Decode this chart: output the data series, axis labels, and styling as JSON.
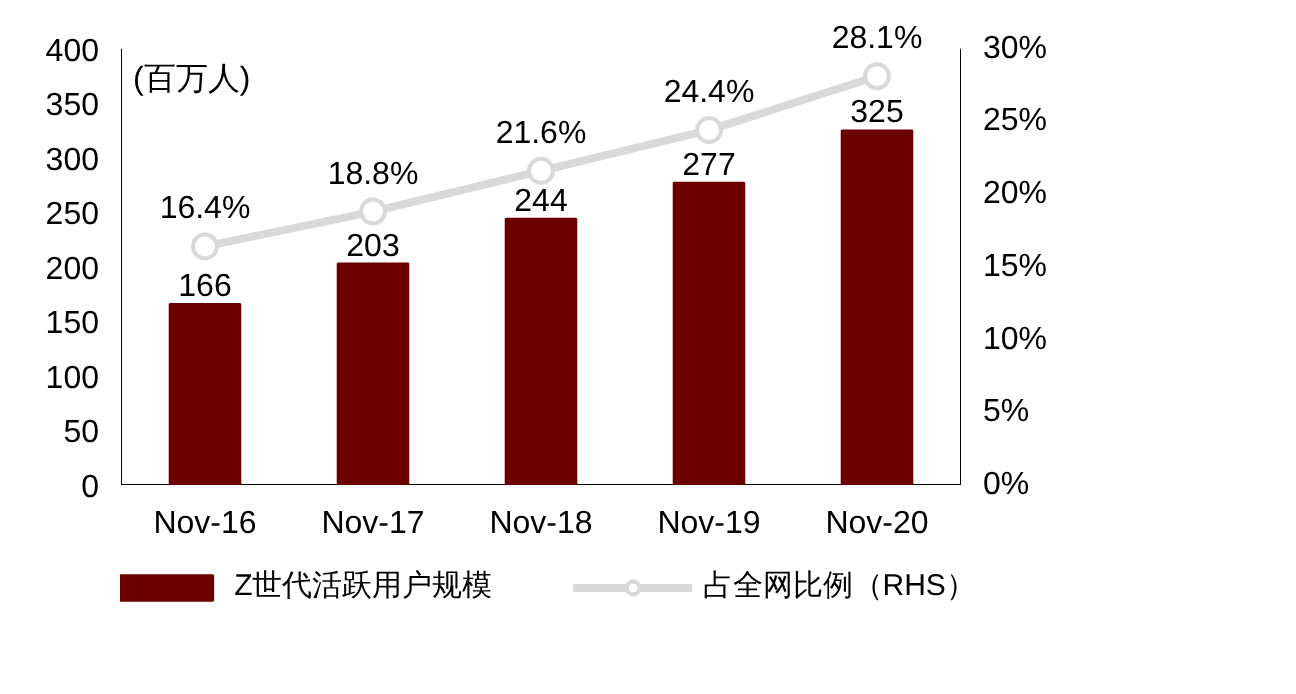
{
  "chart_data": {
    "type": "bar",
    "ylabel": "(百万人)",
    "categories": [
      "Nov-16",
      "Nov-17",
      "Nov-18",
      "Nov-19",
      "Nov-20"
    ],
    "series": [
      {
        "name": "Z世代活跃用户规模",
        "color": "#6b0000",
        "values": [
          166,
          203,
          244,
          277,
          325
        ],
        "value_labels": [
          "166",
          "203",
          "244",
          "277",
          "325"
        ]
      },
      {
        "name": "占全网比例（RHS）",
        "type": "line",
        "axis": "y2",
        "color": "#d9d9d9",
        "values": [
          16.4,
          18.8,
          21.6,
          24.4,
          28.1
        ],
        "value_labels": [
          "16.4%",
          "18.8%",
          "21.6%",
          "24.4%",
          "28.1%"
        ]
      }
    ],
    "ylim": [
      0,
      400
    ],
    "yticks": [
      0,
      50,
      100,
      150,
      200,
      250,
      300,
      350,
      400
    ],
    "y2lim": [
      0,
      30
    ],
    "y2ticks": [
      {
        "value": 0,
        "label": "0%"
      },
      {
        "value": 5,
        "label": "5%"
      },
      {
        "value": 10,
        "label": "10%"
      },
      {
        "value": 15,
        "label": "15%"
      },
      {
        "value": 20,
        "label": "20%"
      },
      {
        "value": 25,
        "label": "25%"
      },
      {
        "value": 30,
        "label": "30%"
      }
    ],
    "grid": false,
    "legend": "bottom",
    "marker": "circle",
    "line_style": "solid"
  }
}
